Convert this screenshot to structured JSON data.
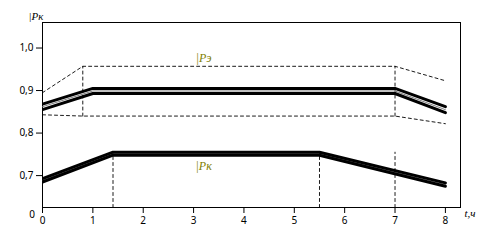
{
  "chart_data": {
    "type": "line",
    "xlabel": "t,ч",
    "ylabel": "|Pк",
    "xlim": [
      0,
      8.3
    ],
    "ylim": [
      0.625,
      1.06
    ],
    "xticks": [
      0,
      1,
      2,
      3,
      4,
      5,
      6,
      7,
      8
    ],
    "yticks": [
      {
        "value": 0.7,
        "label": "0,7"
      },
      {
        "value": 0.8,
        "label": "0,8"
      },
      {
        "value": 0.9,
        "label": "0,9"
      },
      {
        "value": 1.0,
        "label": "1,0"
      }
    ],
    "grid": false,
    "series": [
      {
        "color": "black",
        "line_style": "dashed",
        "x": [
          0,
          0.8,
          7,
          8
        ],
        "values": [
          0.895,
          0.957,
          0.957,
          0.923
        ]
      },
      {
        "color": "black",
        "line_style": "dashed",
        "x": [
          0,
          0.8,
          7,
          8
        ],
        "values": [
          0.843,
          0.84,
          0.84,
          0.822
        ]
      },
      {
        "color": "black",
        "line_style": "dashed",
        "x": [
          0.8,
          0.8
        ],
        "values": [
          0.84,
          0.957
        ]
      },
      {
        "color": "black",
        "line_style": "dashed",
        "x": [
          7.0,
          7.0
        ],
        "values": [
          0.84,
          0.957
        ]
      },
      {
        "color": "gray",
        "line_style": "solid",
        "x": [
          0,
          1,
          7,
          8
        ],
        "values": [
          0.862,
          0.899,
          0.899,
          0.855
        ]
      },
      {
        "color": "black",
        "line_style": "bold",
        "x": [
          0,
          1,
          7,
          8
        ],
        "values": [
          0.868,
          0.905,
          0.905,
          0.862
        ]
      },
      {
        "color": "black",
        "line_style": "bold",
        "x": [
          0,
          1,
          7,
          8
        ],
        "values": [
          0.855,
          0.893,
          0.893,
          0.848
        ]
      },
      {
        "color": "black",
        "line_style": "dashed",
        "x": [
          1.4,
          1.4
        ],
        "values": [
          0.625,
          0.755
        ]
      },
      {
        "color": "black",
        "line_style": "dashed",
        "x": [
          5.5,
          5.5
        ],
        "values": [
          0.625,
          0.755
        ]
      },
      {
        "color": "black",
        "line_style": "dashed",
        "x": [
          7.0,
          7.0
        ],
        "values": [
          0.625,
          0.755
        ]
      },
      {
        "color": "gray",
        "line_style": "solid",
        "x": [
          0,
          1.4,
          5.5,
          8
        ],
        "values": [
          0.689,
          0.751,
          0.751,
          0.679
        ]
      },
      {
        "color": "black",
        "line_style": "bold",
        "x": [
          0,
          1.4,
          5.5,
          8
        ],
        "values": [
          0.693,
          0.755,
          0.755,
          0.683
        ]
      },
      {
        "color": "black",
        "line_style": "bold",
        "x": [
          0,
          1.4,
          5.5,
          8
        ],
        "values": [
          0.685,
          0.748,
          0.748,
          0.675
        ]
      }
    ],
    "annotations": [
      {
        "text": "|Pэ",
        "x": 3.2,
        "y": 0.975,
        "color": "#808000"
      },
      {
        "text": "|Pк",
        "x": 3.2,
        "y": 0.722,
        "color": "#808000"
      },
      {
        "text": "0",
        "x": -0.15,
        "y": 0.625
      }
    ]
  }
}
